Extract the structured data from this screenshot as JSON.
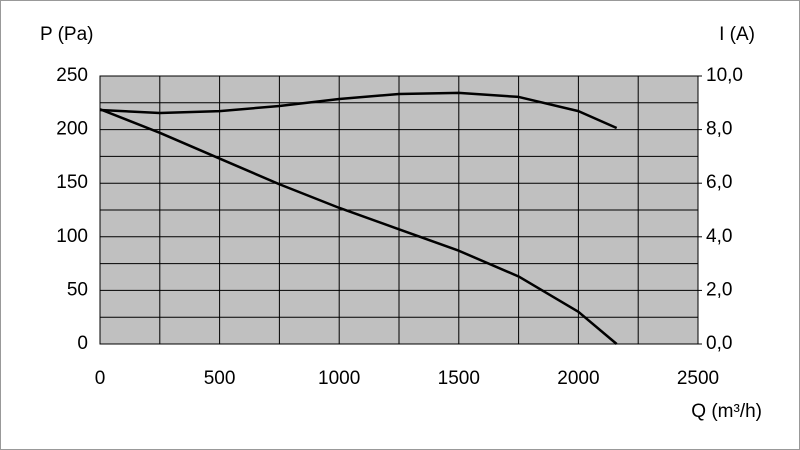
{
  "chart_data": {
    "type": "line",
    "y_label": "P (Pa)",
    "y2_label": "I (A)",
    "x_label": "Q (m³/h)",
    "xlim": [
      0,
      2500
    ],
    "xticks": [
      0,
      500,
      1000,
      1500,
      2000,
      2500
    ],
    "x_minor_ticks": [
      250,
      750,
      1250,
      1750,
      2250
    ],
    "ylim": [
      0,
      250
    ],
    "yticks": [
      0,
      50,
      100,
      150,
      200,
      250
    ],
    "y_minor_ticks": [
      25,
      75,
      125,
      175,
      225
    ],
    "y2lim": [
      0,
      10
    ],
    "y2ticks": [
      {
        "value": 0,
        "label": "0,0"
      },
      {
        "value": 2,
        "label": "2,0"
      },
      {
        "value": 4,
        "label": "4,0"
      },
      {
        "value": 6,
        "label": "6,0"
      },
      {
        "value": 8,
        "label": "8,0"
      },
      {
        "value": 10,
        "label": "10,0"
      }
    ],
    "grid": true,
    "plot_background": "#c0c0c0",
    "series": [
      {
        "color": "#000000",
        "x": [
          0,
          250,
          500,
          750,
          1000,
          1250,
          1500,
          1750,
          2000,
          2160
        ],
        "values": [
          219,
          197,
          173,
          149,
          127,
          107,
          87,
          63,
          30,
          0
        ]
      },
      {
        "color": "#000000",
        "axis": "y2",
        "x": [
          0,
          250,
          500,
          750,
          1000,
          1250,
          1500,
          1750,
          2000,
          2160
        ],
        "values": [
          8.73,
          8.62,
          8.69,
          8.88,
          9.14,
          9.33,
          9.37,
          9.22,
          8.69,
          8.06
        ]
      }
    ]
  }
}
